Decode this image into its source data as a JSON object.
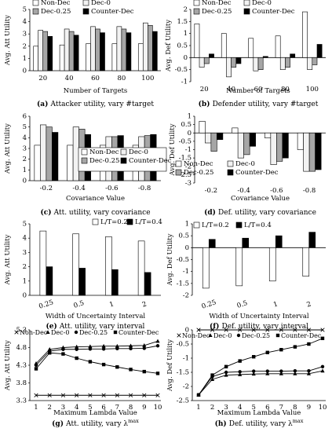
{
  "figure": {
    "panels": [
      {
        "id": "a",
        "caption_letter": "(a)",
        "caption_text": "Attacker utility, vary #target"
      },
      {
        "id": "b",
        "caption_letter": "(b)",
        "caption_text": "Defender utility, vary #target"
      },
      {
        "id": "c",
        "caption_letter": "(c)",
        "caption_text": "Att. utility, vary covariance"
      },
      {
        "id": "d",
        "caption_letter": "(d)",
        "caption_text": "Def. utility, vary covariance"
      },
      {
        "id": "e",
        "caption_letter": "(e)",
        "caption_text": "Att. utility, vary interval"
      },
      {
        "id": "f",
        "caption_letter": "(f)",
        "caption_text": "Def. utility, vary interval"
      },
      {
        "id": "g",
        "caption_letter": "(g)",
        "caption_text": "Att. utility, vary λ",
        "caption_sup": "max"
      },
      {
        "id": "h",
        "caption_letter": "(h)",
        "caption_text": "Def. utility, vary λ",
        "caption_sup": "max"
      }
    ]
  },
  "chart_data": [
    {
      "id": "a",
      "type": "bar",
      "title": "",
      "xlabel": "Number of Targets",
      "ylabel": "Avg. Att Utility",
      "categories": [
        "20",
        "40",
        "60",
        "80",
        "100"
      ],
      "ylim": [
        0,
        5
      ],
      "yticks": [
        "0",
        "1",
        "2",
        "3",
        "4",
        "5"
      ],
      "legend": "top",
      "legend_cols": 2,
      "series": [
        {
          "name": "Non-Dec",
          "color": "#ffffff",
          "values": [
            2.0,
            2.1,
            2.2,
            2.2,
            2.2
          ]
        },
        {
          "name": "Dec-0",
          "color": "#f2f2f2",
          "values": [
            3.3,
            3.4,
            3.6,
            3.6,
            3.9
          ]
        },
        {
          "name": "Dec-0.25",
          "color": "#a6a6a6",
          "values": [
            3.2,
            3.2,
            3.4,
            3.4,
            3.7
          ]
        },
        {
          "name": "Counter-Dec",
          "color": "#000000",
          "values": [
            2.8,
            2.9,
            3.1,
            3.1,
            3.2
          ]
        }
      ]
    },
    {
      "id": "b",
      "type": "bar",
      "title": "",
      "xlabel": "Number of Targets",
      "ylabel": "Avg. Def Utility",
      "categories": [
        "20",
        "40",
        "60",
        "80",
        "100"
      ],
      "ylim": [
        -1,
        2
      ],
      "yticks": [
        "-1",
        "-0.5",
        "0",
        "0.5",
        "1",
        "1.5",
        "2"
      ],
      "legend": "top",
      "legend_cols": 2,
      "series": [
        {
          "name": "Non-Dec",
          "color": "#ffffff",
          "values": [
            1.4,
            1.0,
            0.8,
            0.9,
            1.9
          ]
        },
        {
          "name": "Dec-0",
          "color": "#f2f2f2",
          "values": [
            -0.4,
            -0.8,
            -0.55,
            -0.5,
            -0.5
          ]
        },
        {
          "name": "Dec-0.25",
          "color": "#a6a6a6",
          "values": [
            -0.25,
            -0.4,
            -0.5,
            -0.4,
            -0.3
          ]
        },
        {
          "name": "Counter-Dec",
          "color": "#000000",
          "values": [
            0.15,
            -0.25,
            0.05,
            0.15,
            0.55
          ]
        }
      ]
    },
    {
      "id": "c",
      "type": "bar",
      "title": "",
      "xlabel": "Covariance Value",
      "ylabel": "Avg. Att Utility",
      "categories": [
        "-0.2",
        "-0.4",
        "-0.6",
        "-0.8"
      ],
      "ylim": [
        0,
        6
      ],
      "yticks": [
        "0",
        "1",
        "2",
        "3",
        "4",
        "5",
        "6"
      ],
      "legend": "bottom-right",
      "legend_cols": 2,
      "series": [
        {
          "name": "Non-Dec",
          "color": "#ffffff",
          "values": [
            3.3,
            3.3,
            3.3,
            3.3
          ]
        },
        {
          "name": "Dec-0",
          "color": "#f2f2f2",
          "values": [
            5.2,
            5.0,
            4.1,
            4.1
          ]
        },
        {
          "name": "Dec-0.25",
          "color": "#a6a6a6",
          "values": [
            5.0,
            4.8,
            4.1,
            4.2
          ]
        },
        {
          "name": "Counter-Dec",
          "color": "#000000",
          "values": [
            4.5,
            4.3,
            4.2,
            4.3
          ]
        }
      ]
    },
    {
      "id": "d",
      "type": "bar",
      "title": "",
      "xlabel": "Covariance Value",
      "ylabel": "Avg. Def Utility",
      "categories": [
        "-0.2",
        "-0.4",
        "-0.6",
        "-0.8"
      ],
      "ylim": [
        -3,
        1
      ],
      "yticks": [
        "-3",
        "-2.5",
        "-2",
        "-1.5",
        "-1",
        "-0.5",
        "0",
        "0.5",
        "1"
      ],
      "legend": "bottom-left",
      "legend_cols": 2,
      "series": [
        {
          "name": "Non-Dec",
          "color": "#ffffff",
          "values": [
            0.7,
            0.3,
            -0.3,
            -1.0
          ]
        },
        {
          "name": "Dec-0",
          "color": "#f2f2f2",
          "values": [
            -0.6,
            -1.5,
            -1.9,
            -2.3
          ]
        },
        {
          "name": "Dec-0.25",
          "color": "#a6a6a6",
          "values": [
            -1.1,
            -1.3,
            -1.7,
            -2.3
          ]
        },
        {
          "name": "Counter-Dec",
          "color": "#000000",
          "values": [
            -0.4,
            -0.8,
            -1.5,
            -2.2
          ]
        }
      ]
    },
    {
      "id": "e",
      "type": "bar",
      "title": "",
      "xlabel": "Width of Uncertainty Interval",
      "ylabel": "Avg. Att Utility",
      "categories": [
        "0.25",
        "0.5",
        "1",
        "2"
      ],
      "ylim": [
        0,
        5
      ],
      "yticks": [
        "0",
        "1",
        "2",
        "3",
        "4",
        "5"
      ],
      "legend": "top-right",
      "legend_cols": 2,
      "series": [
        {
          "name": "L/T=0.2",
          "color": "#ffffff",
          "values": [
            4.5,
            4.3,
            4.1,
            3.8
          ]
        },
        {
          "name": "L/T=0.4",
          "color": "#000000",
          "values": [
            2.0,
            1.9,
            1.8,
            1.6
          ]
        }
      ]
    },
    {
      "id": "f",
      "type": "bar",
      "title": "",
      "xlabel": "Width of Uncertainty Interval",
      "ylabel": "Avg. Def Utility",
      "categories": [
        "0.25",
        "0.5",
        "1",
        "2"
      ],
      "ylim": [
        -2,
        1
      ],
      "yticks": [
        "-2",
        "-1.5",
        "-1",
        "-0.5",
        "0",
        "0.5",
        "1"
      ],
      "legend": "top",
      "legend_cols": 2,
      "series": [
        {
          "name": "L/T=0.2",
          "color": "#ffffff",
          "values": [
            -1.7,
            -1.6,
            -1.4,
            -1.2
          ]
        },
        {
          "name": "L/T=0.4",
          "color": "#000000",
          "values": [
            0.35,
            0.4,
            0.5,
            0.65
          ]
        }
      ]
    },
    {
      "id": "g",
      "type": "line",
      "title": "",
      "xlabel": "Maximum Lambda Value",
      "ylabel": "Avg. Att Utility",
      "x": [
        1,
        2,
        3,
        4,
        5,
        6,
        7,
        8,
        9,
        10
      ],
      "ylim": [
        3.3,
        5.3
      ],
      "yticks": [
        "3.3",
        "3.8",
        "4.3",
        "4.8",
        "5.3"
      ],
      "legend": "top",
      "legend_cols": 4,
      "series": [
        {
          "name": "Non-Dec",
          "marker": "x",
          "values": [
            3.45,
            3.45,
            3.45,
            3.45,
            3.45,
            3.45,
            3.45,
            3.45,
            3.45,
            3.45
          ]
        },
        {
          "name": "Dec-0",
          "marker": "triangle",
          "values": [
            4.35,
            4.75,
            4.8,
            4.82,
            4.83,
            4.84,
            4.84,
            4.85,
            4.86,
            4.98
          ]
        },
        {
          "name": "Dec-0.25",
          "marker": "circle",
          "values": [
            4.3,
            4.7,
            4.75,
            4.75,
            4.76,
            4.76,
            4.77,
            4.77,
            4.78,
            4.85
          ]
        },
        {
          "name": "Counter-Dec",
          "marker": "square",
          "values": [
            4.2,
            4.65,
            4.62,
            4.5,
            4.4,
            4.32,
            4.25,
            4.18,
            4.12,
            4.07
          ]
        }
      ]
    },
    {
      "id": "h",
      "type": "line",
      "title": "",
      "xlabel": "Maximum Lambda Value",
      "ylabel": "Avg. Def Utility",
      "x": [
        1,
        2,
        3,
        4,
        5,
        6,
        7,
        8,
        9,
        10
      ],
      "ylim": [
        -2.5,
        0
      ],
      "yticks": [
        "-2.5",
        "-2",
        "-1.5",
        "-1",
        "-0.5",
        "0"
      ],
      "legend": "top",
      "legend_cols": 4,
      "series": [
        {
          "name": "Non-Dec",
          "marker": "x",
          "values": [
            0,
            0,
            0,
            0,
            0,
            0,
            0,
            0,
            0,
            0
          ]
        },
        {
          "name": "Dec-0",
          "marker": "triangle",
          "values": [
            -2.3,
            -1.75,
            -1.6,
            -1.58,
            -1.56,
            -1.55,
            -1.55,
            -1.55,
            -1.55,
            -1.45
          ]
        },
        {
          "name": "Dec-0.25",
          "marker": "circle",
          "values": [
            -2.3,
            -1.65,
            -1.5,
            -1.48,
            -1.46,
            -1.46,
            -1.46,
            -1.45,
            -1.45,
            -1.3
          ]
        },
        {
          "name": "Counter-Dec",
          "marker": "square",
          "values": [
            -2.3,
            -1.6,
            -1.3,
            -1.1,
            -0.95,
            -0.8,
            -0.7,
            -0.6,
            -0.5,
            -0.3
          ]
        }
      ]
    }
  ]
}
